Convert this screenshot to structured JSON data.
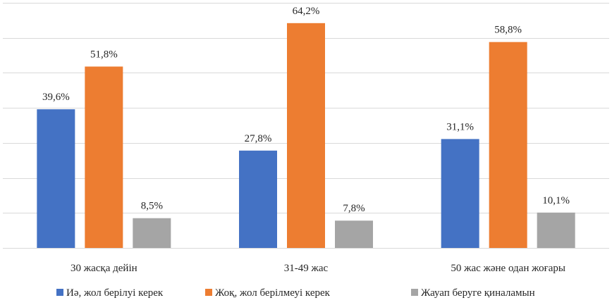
{
  "chart_data": {
    "type": "bar",
    "categories": [
      "30 жасқа дейін",
      "31-49 жас",
      "50 жас және одан жоғары"
    ],
    "series": [
      {
        "name": "Иә, жол берілуі керек",
        "color": "#4472c4",
        "values": [
          39.6,
          27.8,
          31.1
        ],
        "labels": [
          "39,6%",
          "27,8%",
          "31,1%"
        ]
      },
      {
        "name": "Жоқ, жол берілмеуі керек",
        "color": "#ed7d31",
        "values": [
          51.8,
          64.2,
          58.8
        ],
        "labels": [
          "51,8%",
          "64,2%",
          "58,8%"
        ]
      },
      {
        "name": "Жауап беруге қиналамын",
        "color": "#a5a5a5",
        "values": [
          8.5,
          7.8,
          10.1
        ],
        "labels": [
          "8,5%",
          "7,8%",
          "10,1%"
        ]
      }
    ],
    "ylim": [
      0,
      70
    ],
    "grid": true,
    "legend": "bottom"
  }
}
